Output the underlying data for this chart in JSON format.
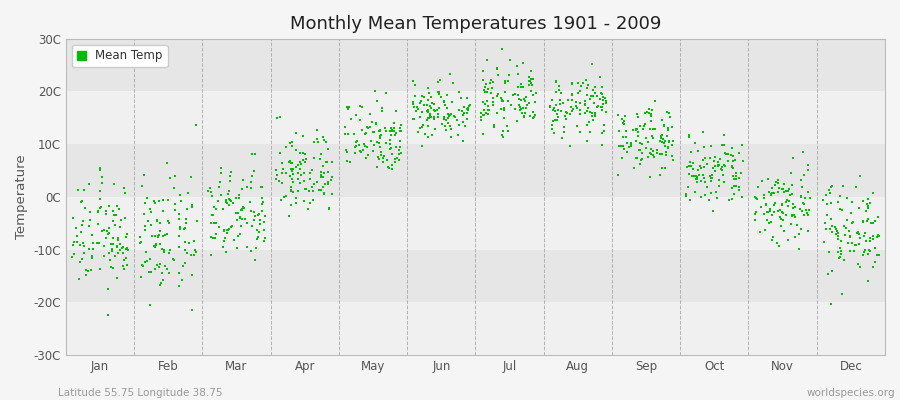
{
  "title": "Monthly Mean Temperatures 1901 - 2009",
  "ylabel": "Temperature",
  "ylim": [
    -30,
    30
  ],
  "yticks": [
    -30,
    -20,
    -10,
    0,
    10,
    20,
    30
  ],
  "ytick_labels": [
    "-30C",
    "-20C",
    "-10C",
    "0C",
    "10C",
    "20C",
    "30C"
  ],
  "month_labels": [
    "Jan",
    "Feb",
    "Mar",
    "Apr",
    "May",
    "Jun",
    "Jul",
    "Aug",
    "Sep",
    "Oct",
    "Nov",
    "Dec"
  ],
  "marker_color": "#00bb00",
  "legend_label": "Mean Temp",
  "subtitle_left": "Latitude 55.75 Longitude 38.75",
  "subtitle_right": "worldspecies.org",
  "bg_color": "#f5f5f5",
  "band_light": "#f0f0f0",
  "band_dark": "#e6e6e6",
  "vline_color": "#999999",
  "mean_temps": [
    -7.5,
    -8.0,
    -3.5,
    4.5,
    11.5,
    16.5,
    18.5,
    17.0,
    11.0,
    4.5,
    -1.5,
    -6.0
  ],
  "spread": [
    5.0,
    5.5,
    4.5,
    4.0,
    3.5,
    2.8,
    2.8,
    2.8,
    3.0,
    3.5,
    4.0,
    4.5
  ],
  "n_years": 109
}
